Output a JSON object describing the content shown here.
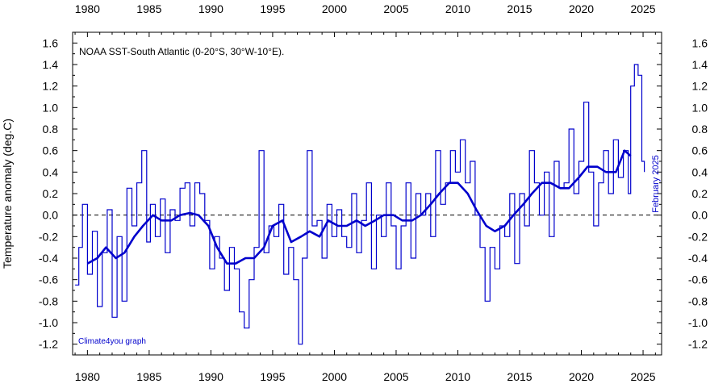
{
  "chart_data": {
    "type": "line",
    "title": "NOAA SST-South Atlantic (0-20°S, 30°W-10°E).",
    "ylabel": "Temperature anomaly (deg.C)",
    "xlabel": "",
    "xlim": [
      1978.8,
      2026.5
    ],
    "ylim": [
      -1.3,
      1.7
    ],
    "x_ticks": [
      "1980",
      "1985",
      "1990",
      "1995",
      "2000",
      "2005",
      "2010",
      "2015",
      "2020",
      "2025"
    ],
    "y_ticks": [
      "1.6",
      "1.4",
      "1.2",
      "1.0",
      "0.8",
      "0.6",
      "0.4",
      "0.2",
      "0.0",
      "-0.2",
      "-0.4",
      "-0.6",
      "-0.8",
      "-1.0",
      "-1.2"
    ],
    "zero_line": "dashed",
    "grid": false,
    "annotations": {
      "date_note": "February 2025",
      "credit": "Climate4you graph"
    },
    "colors": {
      "series": "#0000cc",
      "axes": "#000000",
      "zero_line": "#000000"
    },
    "series": [
      {
        "name": "",
        "style": "monthly-step",
        "x": [
          1979.0,
          1979.3,
          1979.6,
          1980.0,
          1980.4,
          1980.8,
          1981.2,
          1981.6,
          1982.0,
          1982.4,
          1982.8,
          1983.2,
          1983.6,
          1984.0,
          1984.4,
          1984.8,
          1985.1,
          1985.5,
          1985.9,
          1986.3,
          1986.7,
          1987.1,
          1987.5,
          1987.9,
          1988.3,
          1988.7,
          1989.1,
          1989.5,
          1989.9,
          1990.3,
          1990.7,
          1991.1,
          1991.5,
          1991.9,
          1992.3,
          1992.7,
          1993.1,
          1993.5,
          1993.9,
          1994.3,
          1994.7,
          1995.1,
          1995.5,
          1995.9,
          1996.3,
          1996.7,
          1997.1,
          1997.4,
          1997.8,
          1998.2,
          1998.6,
          1999.0,
          1999.4,
          1999.8,
          2000.2,
          2000.6,
          2001.0,
          2001.4,
          2001.8,
          2002.2,
          2002.6,
          2003.0,
          2003.4,
          2003.8,
          2004.2,
          2004.6,
          2005.0,
          2005.4,
          2005.8,
          2006.2,
          2006.6,
          2007.0,
          2007.4,
          2007.8,
          2008.2,
          2008.6,
          2009.0,
          2009.4,
          2009.8,
          2010.2,
          2010.6,
          2011.0,
          2011.4,
          2011.8,
          2012.2,
          2012.6,
          2013.0,
          2013.4,
          2013.8,
          2014.2,
          2014.6,
          2015.0,
          2015.4,
          2015.8,
          2016.2,
          2016.6,
          2017.0,
          2017.4,
          2017.8,
          2018.2,
          2018.6,
          2019.0,
          2019.4,
          2019.8,
          2020.2,
          2020.6,
          2021.0,
          2021.4,
          2021.8,
          2022.2,
          2022.6,
          2023.0,
          2023.4,
          2023.8,
          2024.0,
          2024.3,
          2024.6,
          2024.9,
          2025.1
        ],
        "values": [
          -0.65,
          -0.3,
          0.1,
          -0.55,
          -0.15,
          -0.85,
          -0.35,
          0.05,
          -0.95,
          -0.2,
          -0.8,
          0.25,
          -0.1,
          0.3,
          0.6,
          -0.25,
          0.1,
          -0.2,
          0.15,
          -0.35,
          0.05,
          -0.05,
          0.25,
          0.3,
          -0.1,
          0.3,
          0.2,
          -0.05,
          -0.5,
          -0.2,
          -0.4,
          -0.7,
          -0.3,
          -0.5,
          -0.9,
          -1.05,
          -0.6,
          -0.3,
          0.6,
          -0.35,
          -0.1,
          -0.2,
          0.1,
          -0.55,
          -0.3,
          -0.6,
          -1.2,
          -0.4,
          0.6,
          -0.1,
          -0.05,
          -0.4,
          0.1,
          -0.2,
          0.05,
          -0.2,
          -0.3,
          0.2,
          -0.35,
          -0.05,
          0.3,
          -0.5,
          0.0,
          -0.2,
          0.3,
          -0.1,
          -0.5,
          -0.1,
          0.3,
          -0.4,
          0.2,
          0.0,
          0.2,
          -0.2,
          0.6,
          0.1,
          0.3,
          0.6,
          0.4,
          0.7,
          0.3,
          0.5,
          0.0,
          -0.3,
          -0.8,
          -0.3,
          -0.5,
          -0.1,
          -0.2,
          0.2,
          -0.45,
          0.2,
          -0.1,
          0.6,
          0.3,
          0.0,
          0.4,
          -0.2,
          0.5,
          0.25,
          0.3,
          0.8,
          0.2,
          0.5,
          1.05,
          0.4,
          -0.1,
          0.3,
          0.6,
          0.2,
          0.7,
          0.35,
          0.6,
          0.2,
          1.2,
          1.4,
          1.3,
          0.5,
          0.4
        ]
      },
      {
        "name": "",
        "style": "running-mean",
        "x": [
          1980.0,
          1980.8,
          1981.5,
          1982.3,
          1983.0,
          1983.8,
          1984.5,
          1985.3,
          1986.0,
          1986.8,
          1987.5,
          1988.3,
          1989.0,
          1989.8,
          1990.5,
          1991.3,
          1992.0,
          1992.8,
          1993.5,
          1994.3,
          1995.0,
          1995.8,
          1996.5,
          1997.3,
          1998.0,
          1998.8,
          1999.5,
          2000.3,
          2001.0,
          2001.8,
          2002.5,
          2003.3,
          2004.0,
          2004.8,
          2005.5,
          2006.3,
          2007.0,
          2007.8,
          2008.5,
          2009.3,
          2010.0,
          2010.8,
          2011.5,
          2012.3,
          2013.0,
          2013.8,
          2014.5,
          2015.3,
          2016.0,
          2016.8,
          2017.5,
          2018.3,
          2019.0,
          2019.8,
          2020.5,
          2021.3,
          2022.0,
          2022.8,
          2023.5,
          2024.0
        ],
        "values": [
          -0.45,
          -0.4,
          -0.3,
          -0.4,
          -0.35,
          -0.2,
          -0.1,
          0.0,
          -0.05,
          -0.05,
          0.0,
          0.02,
          0.0,
          -0.1,
          -0.3,
          -0.45,
          -0.45,
          -0.4,
          -0.4,
          -0.3,
          -0.1,
          -0.05,
          -0.25,
          -0.2,
          -0.15,
          -0.2,
          -0.05,
          -0.1,
          -0.1,
          -0.05,
          -0.1,
          -0.05,
          0.0,
          0.0,
          -0.05,
          -0.05,
          0.0,
          0.1,
          0.2,
          0.3,
          0.3,
          0.2,
          0.05,
          -0.1,
          -0.15,
          -0.1,
          0.0,
          0.1,
          0.2,
          0.3,
          0.3,
          0.25,
          0.25,
          0.35,
          0.45,
          0.45,
          0.4,
          0.4,
          0.6,
          0.55
        ]
      }
    ]
  }
}
